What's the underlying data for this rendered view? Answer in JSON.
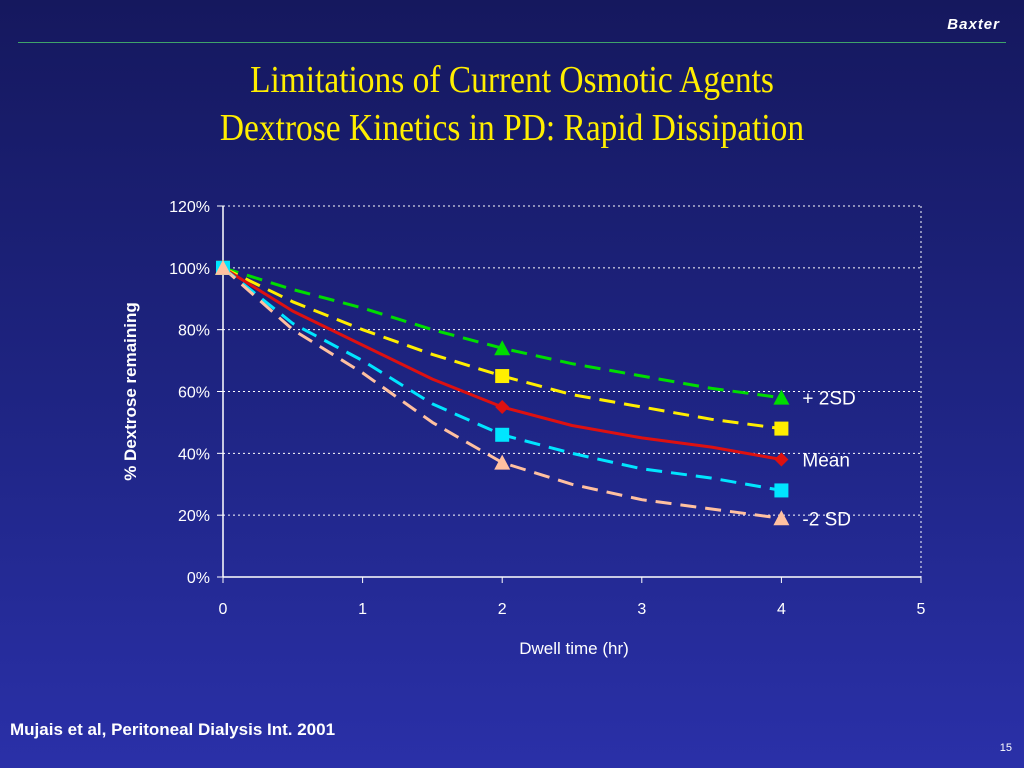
{
  "header": {
    "brand": "Baxter",
    "title_line1": "Limitations of Current Osmotic Agents",
    "title_line2": "Dextrose Kinetics in PD: Rapid Dissipation"
  },
  "footer": {
    "citation": "Mujais et al, Peritoneal Dialysis Int. 2001",
    "page_number": "15"
  },
  "chart_data": {
    "type": "line",
    "xlabel": "Dwell time (hr)",
    "ylabel": "% Dextrose remaining",
    "xlim": [
      0,
      5
    ],
    "ylim": [
      0,
      120
    ],
    "x_ticks": [
      "0",
      "1",
      "2",
      "3",
      "4",
      "5"
    ],
    "y_ticks": [
      "0%",
      "20%",
      "40%",
      "60%",
      "80%",
      "100%",
      "120%"
    ],
    "grid": "horizontal dotted",
    "series": [
      {
        "name": "+ 2SD",
        "color": "#00dd00",
        "dash": "dashed",
        "marker": "triangle",
        "points": [
          [
            0,
            100
          ],
          [
            0.5,
            93
          ],
          [
            1,
            87
          ],
          [
            1.5,
            80
          ],
          [
            2,
            74
          ],
          [
            2.5,
            69
          ],
          [
            3,
            65
          ],
          [
            3.5,
            61
          ],
          [
            4,
            58
          ]
        ]
      },
      {
        "color": "#ffee00",
        "dash": "dashed",
        "marker": "square",
        "points": [
          [
            0,
            100
          ],
          [
            0.5,
            89
          ],
          [
            1,
            80
          ],
          [
            1.5,
            72
          ],
          [
            2,
            65
          ],
          [
            2.5,
            59
          ],
          [
            3,
            55
          ],
          [
            3.5,
            51
          ],
          [
            4,
            48
          ]
        ]
      },
      {
        "name": "Mean",
        "color": "#dd1111",
        "dash": "solid",
        "marker": "diamond",
        "points": [
          [
            0,
            100
          ],
          [
            0.5,
            86
          ],
          [
            1,
            75
          ],
          [
            1.5,
            64
          ],
          [
            2,
            55
          ],
          [
            2.5,
            49
          ],
          [
            3,
            45
          ],
          [
            3.5,
            42
          ],
          [
            4,
            38
          ]
        ]
      },
      {
        "color": "#00e5ff",
        "dash": "dashed",
        "marker": "square",
        "points": [
          [
            0,
            100
          ],
          [
            0.5,
            82
          ],
          [
            1,
            70
          ],
          [
            1.5,
            56
          ],
          [
            2,
            46
          ],
          [
            2.5,
            40
          ],
          [
            3,
            35
          ],
          [
            3.5,
            32
          ],
          [
            4,
            28
          ]
        ]
      },
      {
        "name": "-2 SD",
        "color": "#ffc0a0",
        "dash": "dashed",
        "marker": "triangle",
        "points": [
          [
            0,
            100
          ],
          [
            0.5,
            80
          ],
          [
            1,
            66
          ],
          [
            1.5,
            50
          ],
          [
            2,
            37
          ],
          [
            2.5,
            30
          ],
          [
            3,
            25
          ],
          [
            3.5,
            22
          ],
          [
            4,
            19
          ]
        ]
      }
    ],
    "marked_x": [
      0,
      2,
      4
    ],
    "annotations": [
      "+ 2SD",
      "Mean",
      "-2 SD"
    ],
    "annotation_targets": [
      0,
      2,
      4
    ],
    "colors": {
      "text": "#ffffff",
      "grid": "#ffffff",
      "axis": "#ffffff"
    }
  }
}
